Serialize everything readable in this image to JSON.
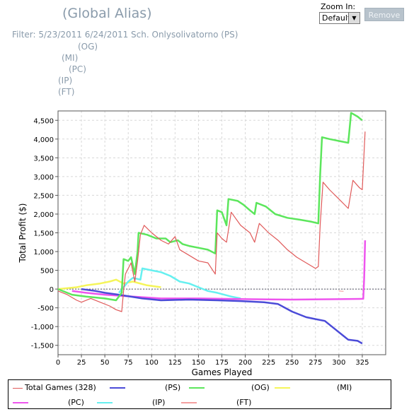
{
  "header": {
    "title": "(Global Alias)",
    "filter_lines": [
      "Filter: 5/23/2011 6/24/2011 Sch. Onlysolivatorno (PS)",
      "(OG)",
      "(MI)",
      "(PC)",
      "(IP)",
      "(FT)"
    ]
  },
  "controls": {
    "zoom_label": "Zoom In:",
    "zoom_value": "Default",
    "remove_label": "Remove"
  },
  "chart_data": {
    "type": "line",
    "xlabel": "Games Played",
    "ylabel": "Total Profit ($)",
    "xlim": [
      0,
      350
    ],
    "ylim": [
      -1750,
      4750
    ],
    "x_ticks": [
      0,
      25,
      50,
      75,
      100,
      125,
      150,
      175,
      200,
      225,
      250,
      275,
      300,
      325
    ],
    "y_ticks": [
      -1500,
      -1000,
      -500,
      0,
      500,
      1000,
      1500,
      2000,
      2500,
      3000,
      3500,
      4000,
      4500
    ],
    "y_tick_labels": [
      "-1,500",
      "-1,000",
      "-500",
      "0",
      "500",
      "1,000",
      "1,500",
      "2,000",
      "2,500",
      "3,000",
      "3,500",
      "4,000",
      "4,500"
    ],
    "grid": true,
    "legend_position": "bottom",
    "series": [
      {
        "name": "Total Games (328)",
        "color": "#e05a5a",
        "points": [
          [
            0,
            -50
          ],
          [
            10,
            -150
          ],
          [
            20,
            -300
          ],
          [
            25,
            -350
          ],
          [
            35,
            -250
          ],
          [
            45,
            -350
          ],
          [
            55,
            -450
          ],
          [
            62,
            -550
          ],
          [
            68,
            -600
          ],
          [
            70,
            -50
          ],
          [
            72,
            400
          ],
          [
            78,
            700
          ],
          [
            82,
            200
          ],
          [
            85,
            750
          ],
          [
            88,
            1450
          ],
          [
            92,
            1700
          ],
          [
            100,
            1500
          ],
          [
            110,
            1300
          ],
          [
            118,
            1200
          ],
          [
            125,
            1400
          ],
          [
            130,
            1050
          ],
          [
            140,
            900
          ],
          [
            150,
            750
          ],
          [
            160,
            700
          ],
          [
            168,
            400
          ],
          [
            170,
            1500
          ],
          [
            175,
            1350
          ],
          [
            180,
            1250
          ],
          [
            185,
            2050
          ],
          [
            195,
            1700
          ],
          [
            205,
            1500
          ],
          [
            210,
            1250
          ],
          [
            215,
            1750
          ],
          [
            225,
            1500
          ],
          [
            235,
            1300
          ],
          [
            245,
            1050
          ],
          [
            255,
            850
          ],
          [
            265,
            700
          ],
          [
            275,
            550
          ],
          [
            278,
            600
          ],
          [
            280,
            1700
          ],
          [
            283,
            2850
          ],
          [
            290,
            2650
          ],
          [
            300,
            2400
          ],
          [
            310,
            2150
          ],
          [
            315,
            2900
          ],
          [
            322,
            2700
          ],
          [
            325,
            2650
          ],
          [
            328,
            4200
          ]
        ]
      },
      {
        "name": "(PS)",
        "color": "#4b4bd8",
        "points": [
          [
            25,
            0
          ],
          [
            40,
            -50
          ],
          [
            50,
            -100
          ],
          [
            65,
            -150
          ],
          [
            90,
            -250
          ],
          [
            110,
            -300
          ],
          [
            140,
            -280
          ],
          [
            170,
            -300
          ],
          [
            195,
            -320
          ],
          [
            220,
            -350
          ],
          [
            235,
            -400
          ],
          [
            250,
            -600
          ],
          [
            265,
            -750
          ],
          [
            275,
            -800
          ],
          [
            285,
            -850
          ],
          [
            295,
            -1050
          ],
          [
            305,
            -1250
          ],
          [
            310,
            -1350
          ],
          [
            320,
            -1380
          ],
          [
            325,
            -1450
          ]
        ]
      },
      {
        "name": "(OG)",
        "color": "#5ce65c",
        "points": [
          [
            0,
            0
          ],
          [
            15,
            -150
          ],
          [
            30,
            -200
          ],
          [
            50,
            -250
          ],
          [
            62,
            -300
          ],
          [
            68,
            -100
          ],
          [
            70,
            800
          ],
          [
            75,
            750
          ],
          [
            78,
            850
          ],
          [
            82,
            400
          ],
          [
            85,
            1000
          ],
          [
            86,
            1500
          ],
          [
            95,
            1450
          ],
          [
            105,
            1350
          ],
          [
            115,
            1350
          ],
          [
            120,
            1250
          ],
          [
            128,
            1300
          ],
          [
            133,
            1200
          ],
          [
            140,
            1150
          ],
          [
            150,
            1100
          ],
          [
            160,
            1050
          ],
          [
            168,
            950
          ],
          [
            170,
            2100
          ],
          [
            175,
            2050
          ],
          [
            180,
            1700
          ],
          [
            182,
            2400
          ],
          [
            192,
            2350
          ],
          [
            198,
            2250
          ],
          [
            205,
            2100
          ],
          [
            210,
            2000
          ],
          [
            212,
            2300
          ],
          [
            222,
            2200
          ],
          [
            232,
            2000
          ],
          [
            245,
            1900
          ],
          [
            258,
            1850
          ],
          [
            270,
            1800
          ],
          [
            278,
            1750
          ],
          [
            280,
            3050
          ],
          [
            282,
            4050
          ],
          [
            290,
            4000
          ],
          [
            300,
            3950
          ],
          [
            310,
            3900
          ],
          [
            313,
            4700
          ],
          [
            320,
            4600
          ],
          [
            325,
            4500
          ]
        ]
      },
      {
        "name": "(MI)",
        "color": "#f5f55a",
        "points": [
          [
            0,
            0
          ],
          [
            20,
            50
          ],
          [
            30,
            100
          ],
          [
            45,
            150
          ],
          [
            55,
            200
          ],
          [
            62,
            250
          ],
          [
            70,
            150
          ],
          [
            80,
            200
          ],
          [
            95,
            100
          ],
          [
            110,
            50
          ]
        ]
      },
      {
        "name": "(PC)",
        "color": "#ee55ee",
        "points": [
          [
            15,
            -50
          ],
          [
            30,
            -100
          ],
          [
            50,
            -150
          ],
          [
            80,
            -200
          ],
          [
            110,
            -250
          ],
          [
            150,
            -250
          ],
          [
            200,
            -270
          ],
          [
            250,
            -280
          ],
          [
            300,
            -270
          ],
          [
            326,
            -260
          ],
          [
            327,
            300
          ],
          [
            328,
            1300
          ]
        ]
      },
      {
        "name": "(IP)",
        "color": "#66f0f0",
        "points": [
          [
            65,
            -100
          ],
          [
            75,
            200
          ],
          [
            80,
            300
          ],
          [
            88,
            250
          ],
          [
            90,
            550
          ],
          [
            100,
            500
          ],
          [
            110,
            450
          ],
          [
            120,
            350
          ],
          [
            130,
            200
          ],
          [
            140,
            150
          ],
          [
            150,
            50
          ],
          [
            160,
            -50
          ],
          [
            170,
            -100
          ],
          [
            185,
            -200
          ],
          [
            195,
            -250
          ]
        ]
      },
      {
        "name": "(FT)",
        "color": "#f4a0a0",
        "points": [
          [
            300,
            -50
          ],
          [
            305,
            -60
          ]
        ]
      }
    ]
  }
}
